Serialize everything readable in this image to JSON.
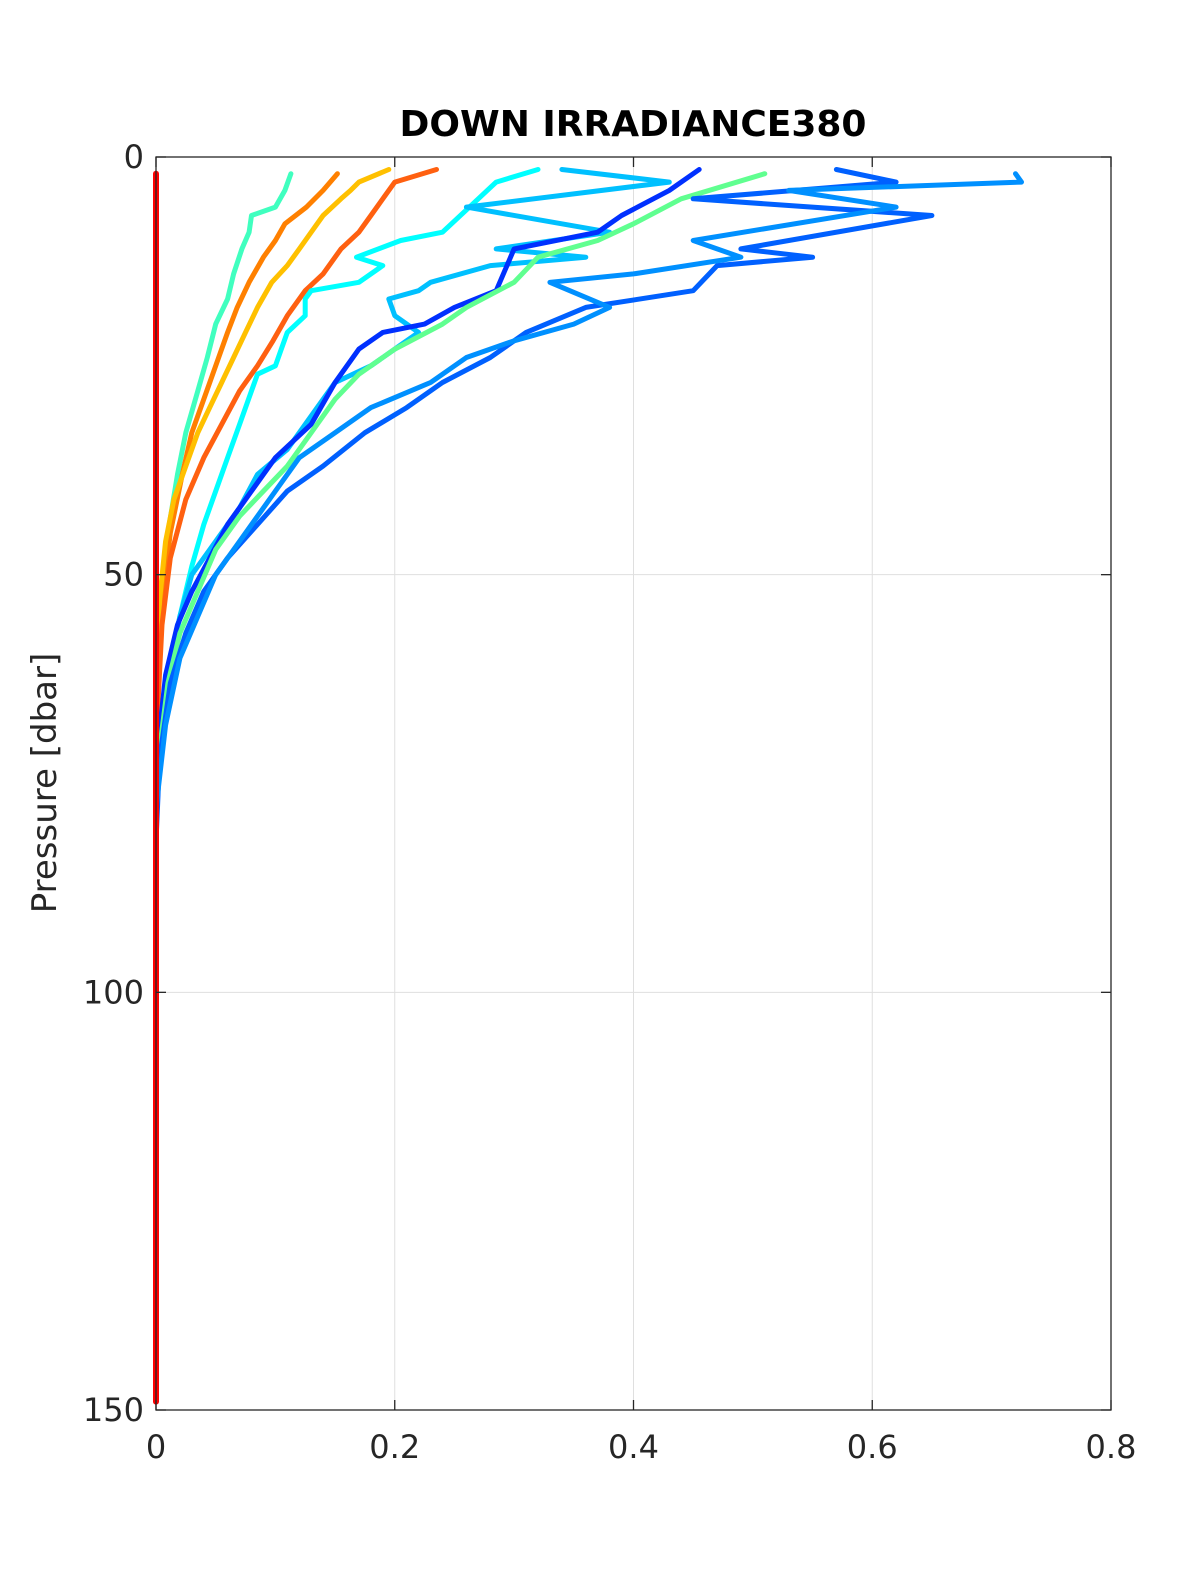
{
  "chart_data": {
    "type": "line",
    "title": "DOWN IRRADIANCE380",
    "xlabel": "",
    "ylabel": "Pressure [dbar]",
    "xlim": [
      0,
      0.8
    ],
    "ylim": [
      0,
      150
    ],
    "y_reversed": true,
    "grid": true,
    "x_ticks": [
      "0",
      "0.2",
      "0.4",
      "0.6",
      "0.8"
    ],
    "y_ticks": [
      "0",
      "50",
      "100",
      "150"
    ],
    "series": [
      {
        "color": "#FF0000",
        "x": [
          0,
          0,
          0,
          0
        ],
        "y": [
          2,
          50,
          100,
          149
        ]
      },
      {
        "color": "#40FFBF",
        "x": [
          0.113,
          0.108,
          0.1,
          0.08,
          0.078,
          0.072,
          0.065,
          0.06,
          0.05,
          0.043,
          0.035,
          0.025,
          0.018,
          0.01,
          0.005,
          0.002,
          0.0
        ],
        "y": [
          2,
          4,
          6,
          7,
          9,
          11,
          14,
          17,
          20,
          24,
          28,
          33,
          38,
          45,
          52,
          60,
          75
        ]
      },
      {
        "color": "#FF8000",
        "x": [
          0.152,
          0.14,
          0.126,
          0.108,
          0.1,
          0.09,
          0.078,
          0.068,
          0.06,
          0.05,
          0.04,
          0.03,
          0.022,
          0.012,
          0.006,
          0.002,
          0.0
        ],
        "y": [
          2,
          4,
          6,
          8,
          10,
          12,
          15,
          18,
          21,
          25,
          29,
          33,
          38,
          45,
          52,
          60,
          75
        ]
      },
      {
        "color": "#FFC000",
        "x": [
          0.195,
          0.17,
          0.163,
          0.155,
          0.14,
          0.13,
          0.12,
          0.11,
          0.097,
          0.085,
          0.075,
          0.065,
          0.055,
          0.045,
          0.035,
          0.025,
          0.015,
          0.008,
          0.003,
          0.0
        ],
        "y": [
          1.5,
          3,
          4,
          5,
          7,
          9,
          11,
          13,
          15,
          18,
          21,
          24,
          27,
          30,
          33,
          37,
          41,
          46,
          53,
          65
        ]
      },
      {
        "color": "#FF6010",
        "x": [
          0.235,
          0.2,
          0.19,
          0.18,
          0.17,
          0.155,
          0.14,
          0.125,
          0.11,
          0.098,
          0.085,
          0.07,
          0.055,
          0.04,
          0.025,
          0.012,
          0.005,
          0.0
        ],
        "y": [
          1.5,
          3,
          5,
          7,
          9,
          11,
          14,
          16,
          19,
          22,
          25,
          28,
          32,
          36,
          41,
          48,
          56,
          70
        ]
      },
      {
        "color": "#00FFFF",
        "x": [
          0.32,
          0.285,
          0.27,
          0.24,
          0.205,
          0.168,
          0.19,
          0.17,
          0.13,
          0.125,
          0.125,
          0.11,
          0.105,
          0.1,
          0.085,
          0.08,
          0.07,
          0.06,
          0.05,
          0.04,
          0.03,
          0.02,
          0.01,
          0.0
        ],
        "y": [
          1.5,
          3,
          5,
          9,
          10,
          12,
          13,
          15,
          16,
          17,
          19,
          21,
          23,
          25,
          26,
          28,
          32,
          36,
          40,
          44,
          49,
          55,
          62,
          72
        ]
      },
      {
        "color": "#00C0FF",
        "x": [
          0.34,
          0.43,
          0.26,
          0.38,
          0.285,
          0.36,
          0.28,
          0.23,
          0.22,
          0.195,
          0.2,
          0.22,
          0.2,
          0.18,
          0.15,
          0.13,
          0.11,
          0.085,
          0.07,
          0.05,
          0.03,
          0.02,
          0.01,
          0.0
        ],
        "y": [
          1.5,
          3,
          6,
          9,
          11,
          12,
          13,
          15,
          16,
          17,
          19,
          21,
          23,
          25,
          27,
          31,
          35,
          38,
          42,
          46,
          50,
          55,
          62,
          72
        ]
      },
      {
        "color": "#0030FF",
        "x": [
          0.455,
          0.43,
          0.39,
          0.37,
          0.3,
          0.285,
          0.25,
          0.225,
          0.19,
          0.17,
          0.15,
          0.13,
          0.1,
          0.09,
          0.08,
          0.06,
          0.045,
          0.03,
          0.018,
          0.008,
          0.002,
          0.0
        ],
        "y": [
          1.5,
          4,
          7,
          9,
          11,
          16,
          18,
          20,
          21,
          23,
          27,
          32,
          36,
          38,
          40,
          44,
          48,
          52,
          56,
          62,
          70,
          80
        ]
      },
      {
        "color": "#60FF90",
        "x": [
          0.51,
          0.44,
          0.4,
          0.37,
          0.32,
          0.3,
          0.26,
          0.24,
          0.2,
          0.17,
          0.15,
          0.13,
          0.11,
          0.09,
          0.07,
          0.05,
          0.035,
          0.02,
          0.01,
          0.002,
          0.0
        ],
        "y": [
          2,
          5,
          8,
          10,
          12,
          15,
          18,
          20,
          23,
          26,
          29,
          33,
          37,
          40,
          43,
          47,
          52,
          57,
          63,
          72,
          80
        ]
      },
      {
        "color": "#0060FF",
        "x": [
          0.57,
          0.62,
          0.45,
          0.65,
          0.49,
          0.55,
          0.47,
          0.45,
          0.36,
          0.31,
          0.28,
          0.24,
          0.21,
          0.175,
          0.14,
          0.11,
          0.085,
          0.06,
          0.04,
          0.025,
          0.012,
          0.003,
          0.0
        ],
        "y": [
          1.5,
          3,
          5,
          7,
          11,
          12,
          13,
          16,
          18,
          21,
          24,
          27,
          30,
          33,
          37,
          40,
          44,
          48,
          52,
          57,
          63,
          72,
          82
        ]
      },
      {
        "color": "#0090FF",
        "x": [
          0.72,
          0.725,
          0.53,
          0.62,
          0.45,
          0.49,
          0.4,
          0.33,
          0.38,
          0.35,
          0.3,
          0.26,
          0.23,
          0.18,
          0.15,
          0.12,
          0.1,
          0.085,
          0.07,
          0.05,
          0.035,
          0.02,
          0.008,
          0.0
        ],
        "y": [
          2,
          3,
          4,
          6,
          10,
          12,
          14,
          15,
          18,
          20,
          22,
          24,
          27,
          30,
          33,
          36,
          40,
          43,
          46,
          50,
          55,
          60,
          68,
          78
        ]
      }
    ]
  }
}
